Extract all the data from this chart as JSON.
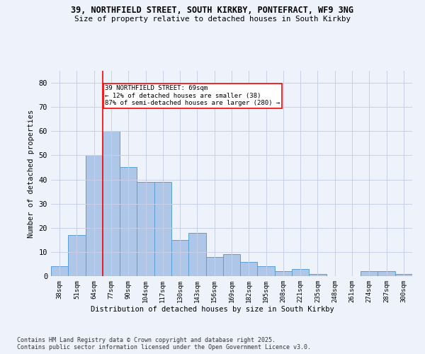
{
  "title1": "39, NORTHFIELD STREET, SOUTH KIRKBY, PONTEFRACT, WF9 3NG",
  "title2": "Size of property relative to detached houses in South Kirkby",
  "xlabel": "Distribution of detached houses by size in South Kirkby",
  "ylabel": "Number of detached properties",
  "categories": [
    "38sqm",
    "51sqm",
    "64sqm",
    "77sqm",
    "90sqm",
    "104sqm",
    "117sqm",
    "130sqm",
    "143sqm",
    "156sqm",
    "169sqm",
    "182sqm",
    "195sqm",
    "208sqm",
    "221sqm",
    "235sqm",
    "248sqm",
    "261sqm",
    "274sqm",
    "287sqm",
    "300sqm"
  ],
  "values": [
    4,
    17,
    50,
    60,
    45,
    39,
    39,
    15,
    18,
    8,
    9,
    6,
    4,
    2,
    3,
    1,
    0,
    0,
    2,
    2,
    1
  ],
  "bar_color": "#aec6e8",
  "bar_edge_color": "#5a9fd4",
  "red_line_x": 2.5,
  "annotation_text": "39 NORTHFIELD STREET: 69sqm\n← 12% of detached houses are smaller (38)\n87% of semi-detached houses are larger (280) →",
  "annotation_box_color": "white",
  "annotation_box_edge_color": "red",
  "ylim": [
    0,
    85
  ],
  "yticks": [
    0,
    10,
    20,
    30,
    40,
    50,
    60,
    70,
    80
  ],
  "footer": "Contains HM Land Registry data © Crown copyright and database right 2025.\nContains public sector information licensed under the Open Government Licence v3.0.",
  "bg_color": "#eef2fb",
  "grid_color": "#c8d0e8"
}
